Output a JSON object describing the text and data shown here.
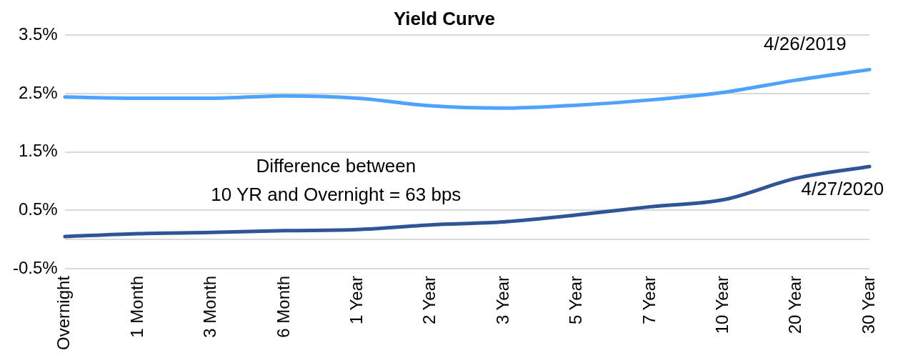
{
  "chart_data": {
    "type": "line",
    "title": "Yield Curve",
    "categories": [
      "Overnight",
      "1 Month",
      "3 Month",
      "6 Month",
      "1 Year",
      "2 Year",
      "3 Year",
      "5 Year",
      "7 Year",
      "10 Year",
      "20 Year",
      "30 Year"
    ],
    "series": [
      {
        "name": "4/26/2019",
        "color": "#4da3ff",
        "values": [
          2.44,
          2.42,
          2.42,
          2.46,
          2.42,
          2.29,
          2.25,
          2.3,
          2.39,
          2.52,
          2.73,
          2.91
        ]
      },
      {
        "name": "4/27/2020",
        "color": "#2f5597",
        "values": [
          0.05,
          0.1,
          0.12,
          0.15,
          0.17,
          0.25,
          0.3,
          0.42,
          0.56,
          0.68,
          1.05,
          1.25
        ]
      }
    ],
    "ylim": [
      -0.5,
      3.5
    ],
    "yticks": [
      {
        "value": 3.5,
        "label": "3.5%"
      },
      {
        "value": 2.5,
        "label": "2.5%"
      },
      {
        "value": 1.5,
        "label": "1.5%"
      },
      {
        "value": 0.5,
        "label": "0.5%"
      },
      {
        "value": 0,
        "label": null
      },
      {
        "value": -0.5,
        "label": "-0.5%"
      }
    ],
    "grid": "y",
    "legend": false,
    "marker": "none",
    "line_style": "solid",
    "annotations": [
      "Difference between 10 YR and Overnight = 63 bps"
    ]
  }
}
